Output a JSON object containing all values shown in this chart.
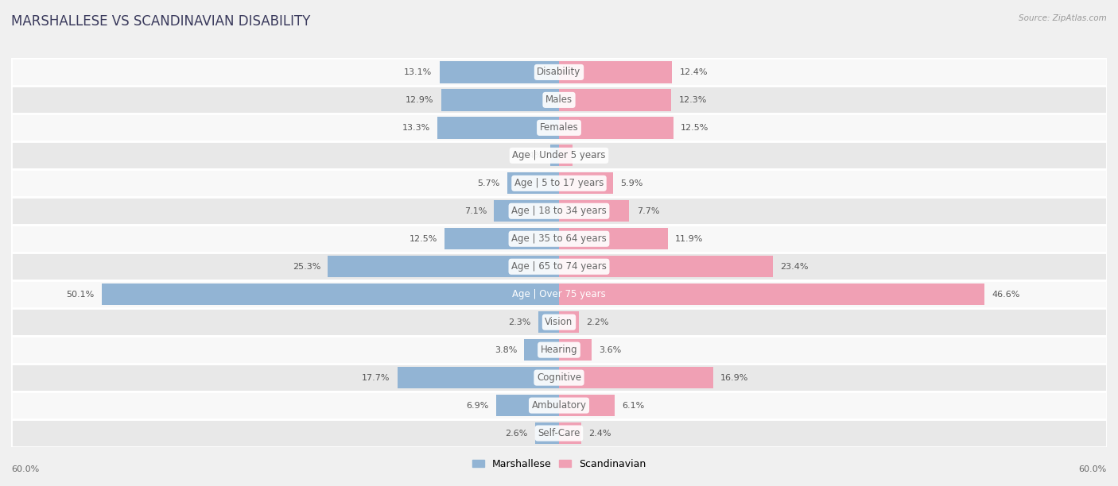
{
  "title": "MARSHALLESE VS SCANDINAVIAN DISABILITY",
  "source": "Source: ZipAtlas.com",
  "categories": [
    "Disability",
    "Males",
    "Females",
    "Age | Under 5 years",
    "Age | 5 to 17 years",
    "Age | 18 to 34 years",
    "Age | 35 to 64 years",
    "Age | 65 to 74 years",
    "Age | Over 75 years",
    "Vision",
    "Hearing",
    "Cognitive",
    "Ambulatory",
    "Self-Care"
  ],
  "marshallese": [
    13.1,
    12.9,
    13.3,
    0.94,
    5.7,
    7.1,
    12.5,
    25.3,
    50.1,
    2.3,
    3.8,
    17.7,
    6.9,
    2.6
  ],
  "scandinavian": [
    12.4,
    12.3,
    12.5,
    1.5,
    5.9,
    7.7,
    11.9,
    23.4,
    46.6,
    2.2,
    3.6,
    16.9,
    6.1,
    2.4
  ],
  "marshallese_color": "#92b4d4",
  "scandinavian_color": "#f0a0b4",
  "marshallese_label": "Marshallese",
  "scandinavian_label": "Scandinavian",
  "background_color": "#f0f0f0",
  "row_color_light": "#f8f8f8",
  "row_color_dark": "#e8e8e8",
  "max_value": 60.0,
  "title_fontsize": 12,
  "label_fontsize": 8.5,
  "value_fontsize": 8,
  "tick_fontsize": 8,
  "bar_height": 0.78,
  "center_label_color": "#666666",
  "value_label_color": "#555555",
  "white_text_row": 8
}
